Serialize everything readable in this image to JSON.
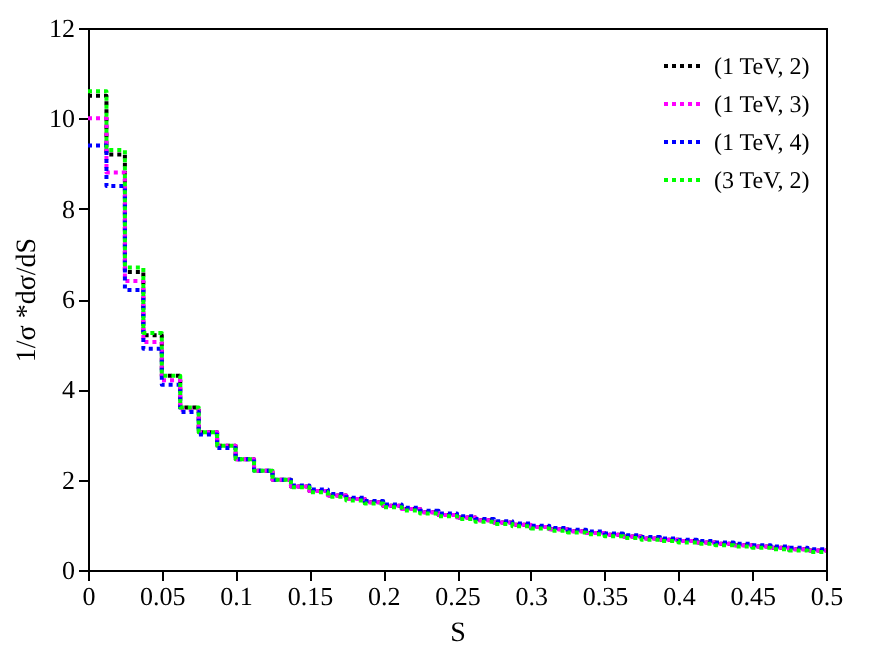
{
  "chart_data": {
    "type": "histogram",
    "xlabel": "S",
    "ylabel": "1/σ *dσ/dS",
    "xlim": [
      0,
      0.5
    ],
    "ylim": [
      0,
      12
    ],
    "xticks": [
      0,
      0.05,
      0.1,
      0.15,
      0.2,
      0.25,
      0.3,
      0.35,
      0.4,
      0.45,
      0.5
    ],
    "yticks": [
      0,
      2,
      4,
      6,
      8,
      10,
      12
    ],
    "grid": false,
    "legend": "top right",
    "line_style": "dotted",
    "bins": [
      0,
      0.0125,
      0.025,
      0.0375,
      0.05,
      0.0625,
      0.075,
      0.0875,
      0.1,
      0.1125,
      0.125,
      0.1375,
      0.15,
      0.1625,
      0.175,
      0.1875,
      0.2,
      0.2125,
      0.225,
      0.2375,
      0.25,
      0.2625,
      0.275,
      0.2875,
      0.3,
      0.3125,
      0.325,
      0.3375,
      0.35,
      0.3625,
      0.375,
      0.3875,
      0.4,
      0.4125,
      0.425,
      0.4375,
      0.45,
      0.4625,
      0.475,
      0.4875,
      0.5
    ],
    "series": [
      {
        "name": "(1 TeV, 2)",
        "color": "#000000",
        "values": [
          10.5,
          9.2,
          6.6,
          5.2,
          4.3,
          3.6,
          3.05,
          2.75,
          2.45,
          2.2,
          2.0,
          1.85,
          1.75,
          1.65,
          1.57,
          1.5,
          1.42,
          1.35,
          1.28,
          1.22,
          1.16,
          1.1,
          1.05,
          1.0,
          0.95,
          0.9,
          0.86,
          0.82,
          0.78,
          0.74,
          0.7,
          0.67,
          0.64,
          0.61,
          0.58,
          0.55,
          0.52,
          0.49,
          0.46,
          0.43
        ]
      },
      {
        "name": "(1 TeV, 3)",
        "color": "#ff00ff",
        "values": [
          10.0,
          8.8,
          6.4,
          5.05,
          4.2,
          3.55,
          3.05,
          2.75,
          2.45,
          2.2,
          2.0,
          1.85,
          1.75,
          1.65,
          1.57,
          1.5,
          1.42,
          1.35,
          1.28,
          1.22,
          1.16,
          1.1,
          1.05,
          1.0,
          0.95,
          0.9,
          0.86,
          0.82,
          0.78,
          0.74,
          0.7,
          0.67,
          0.64,
          0.61,
          0.58,
          0.55,
          0.52,
          0.49,
          0.46,
          0.43
        ]
      },
      {
        "name": "(1 TeV, 4)",
        "color": "#0000ff",
        "values": [
          9.4,
          8.5,
          6.2,
          4.9,
          4.1,
          3.5,
          3.0,
          2.7,
          2.45,
          2.2,
          2.0,
          1.87,
          1.78,
          1.68,
          1.6,
          1.53,
          1.45,
          1.38,
          1.31,
          1.25,
          1.19,
          1.13,
          1.08,
          1.03,
          0.98,
          0.93,
          0.89,
          0.85,
          0.81,
          0.77,
          0.73,
          0.7,
          0.67,
          0.64,
          0.61,
          0.58,
          0.55,
          0.52,
          0.49,
          0.46
        ]
      },
      {
        "name": "(3 TeV, 2)",
        "color": "#00ff00",
        "values": [
          10.6,
          9.3,
          6.7,
          5.25,
          4.3,
          3.6,
          3.05,
          2.75,
          2.45,
          2.2,
          2.0,
          1.83,
          1.72,
          1.62,
          1.54,
          1.47,
          1.39,
          1.32,
          1.25,
          1.19,
          1.13,
          1.07,
          1.02,
          0.97,
          0.92,
          0.87,
          0.83,
          0.79,
          0.75,
          0.71,
          0.67,
          0.64,
          0.61,
          0.58,
          0.55,
          0.52,
          0.49,
          0.46,
          0.43,
          0.4
        ]
      }
    ]
  }
}
